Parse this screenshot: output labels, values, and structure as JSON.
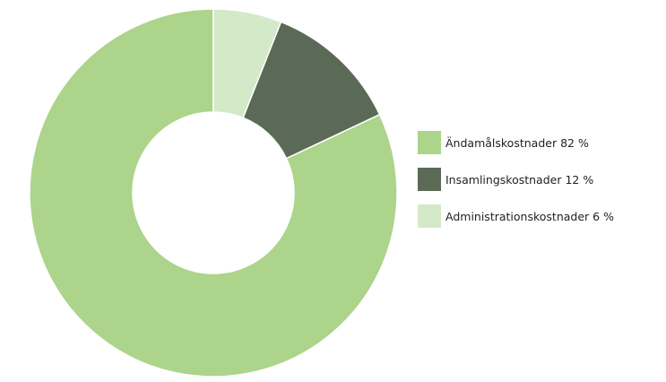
{
  "chart_data": {
    "type": "donut",
    "categories": [
      "Ändamålskostnader",
      "Insamlingskostnader",
      "Administrationskostnader"
    ],
    "values": [
      82,
      12,
      6
    ],
    "value_labels": [
      "82 %",
      "12 %",
      "6 %"
    ],
    "colors": [
      "#acd48a",
      "#5a6a56",
      "#d4e9c8"
    ]
  }
}
